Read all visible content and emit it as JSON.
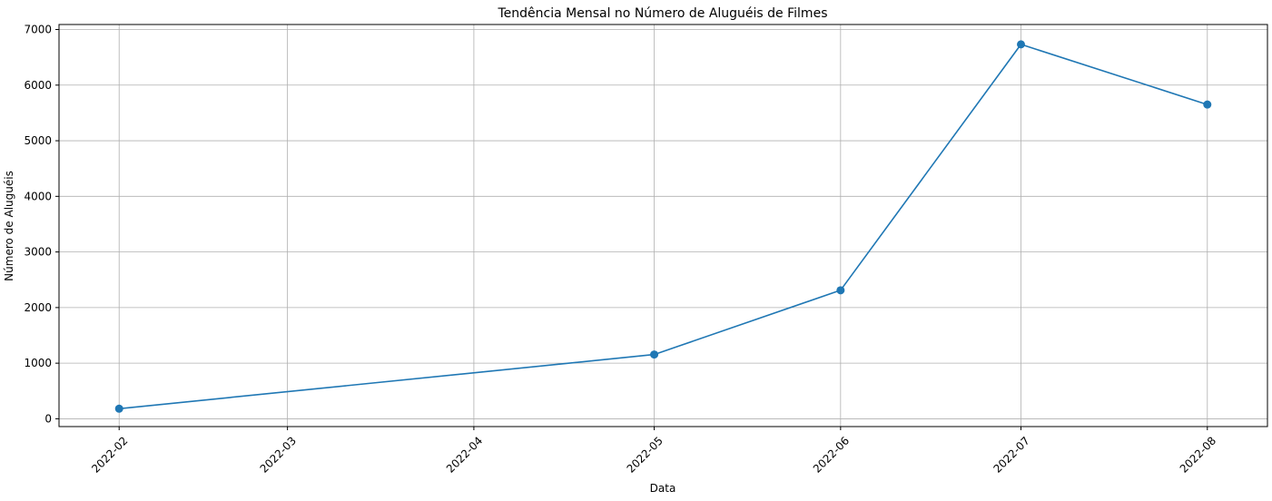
{
  "chart_data": {
    "type": "line",
    "title": "Tendência Mensal no Número de Aluguéis de Filmes",
    "xlabel": "Data",
    "ylabel": "Número de Aluguéis",
    "x_tick_labels": [
      "2022-02",
      "2022-03",
      "2022-04",
      "2022-05",
      "2022-06",
      "2022-07",
      "2022-08"
    ],
    "x_tick_dates": [
      "2022-02-01",
      "2022-03-01",
      "2022-04-01",
      "2022-05-01",
      "2022-06-01",
      "2022-07-01",
      "2022-08-01"
    ],
    "y_ticks": [
      0,
      1000,
      2000,
      3000,
      4000,
      5000,
      6000,
      7000
    ],
    "ylim": [
      -140,
      7090
    ],
    "xlim": [
      "2022-01-22",
      "2022-08-11"
    ],
    "grid": true,
    "series": [
      {
        "color": "#1f77b4",
        "marker": "circle",
        "points": [
          {
            "x": "2022-02-01",
            "y": 182
          },
          {
            "x": "2022-05-01",
            "y": 1156
          },
          {
            "x": "2022-06-01",
            "y": 2311
          },
          {
            "x": "2022-07-01",
            "y": 6733
          },
          {
            "x": "2022-08-01",
            "y": 5651
          }
        ]
      }
    ]
  }
}
